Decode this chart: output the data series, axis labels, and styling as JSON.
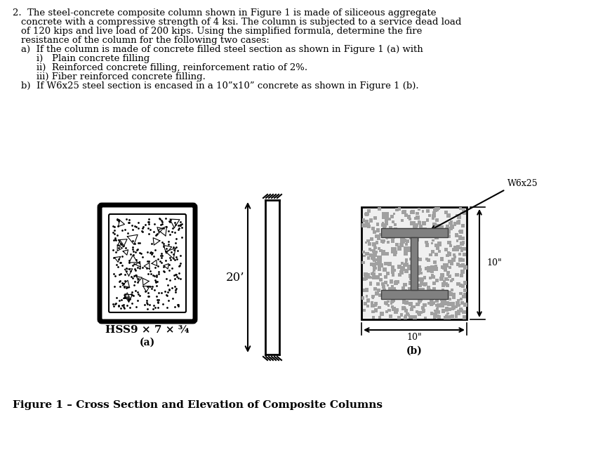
{
  "bg_color": "#ffffff",
  "hss_label": "HSS9 × 7 × ¾",
  "label_a": "(a)",
  "label_b": "(b)",
  "label_20ft": "20’",
  "label_w6x25": "W6x25",
  "label_10in_horiz": "10\"",
  "label_10in_vert": "10\"",
  "figure_caption": "Figure 1 – Cross Section and Elevation of Composite Columns",
  "concrete_color": "#c8c8c8",
  "concrete_dot_color": "#888888",
  "steel_gray": "#808080",
  "steel_edge": "#404040"
}
